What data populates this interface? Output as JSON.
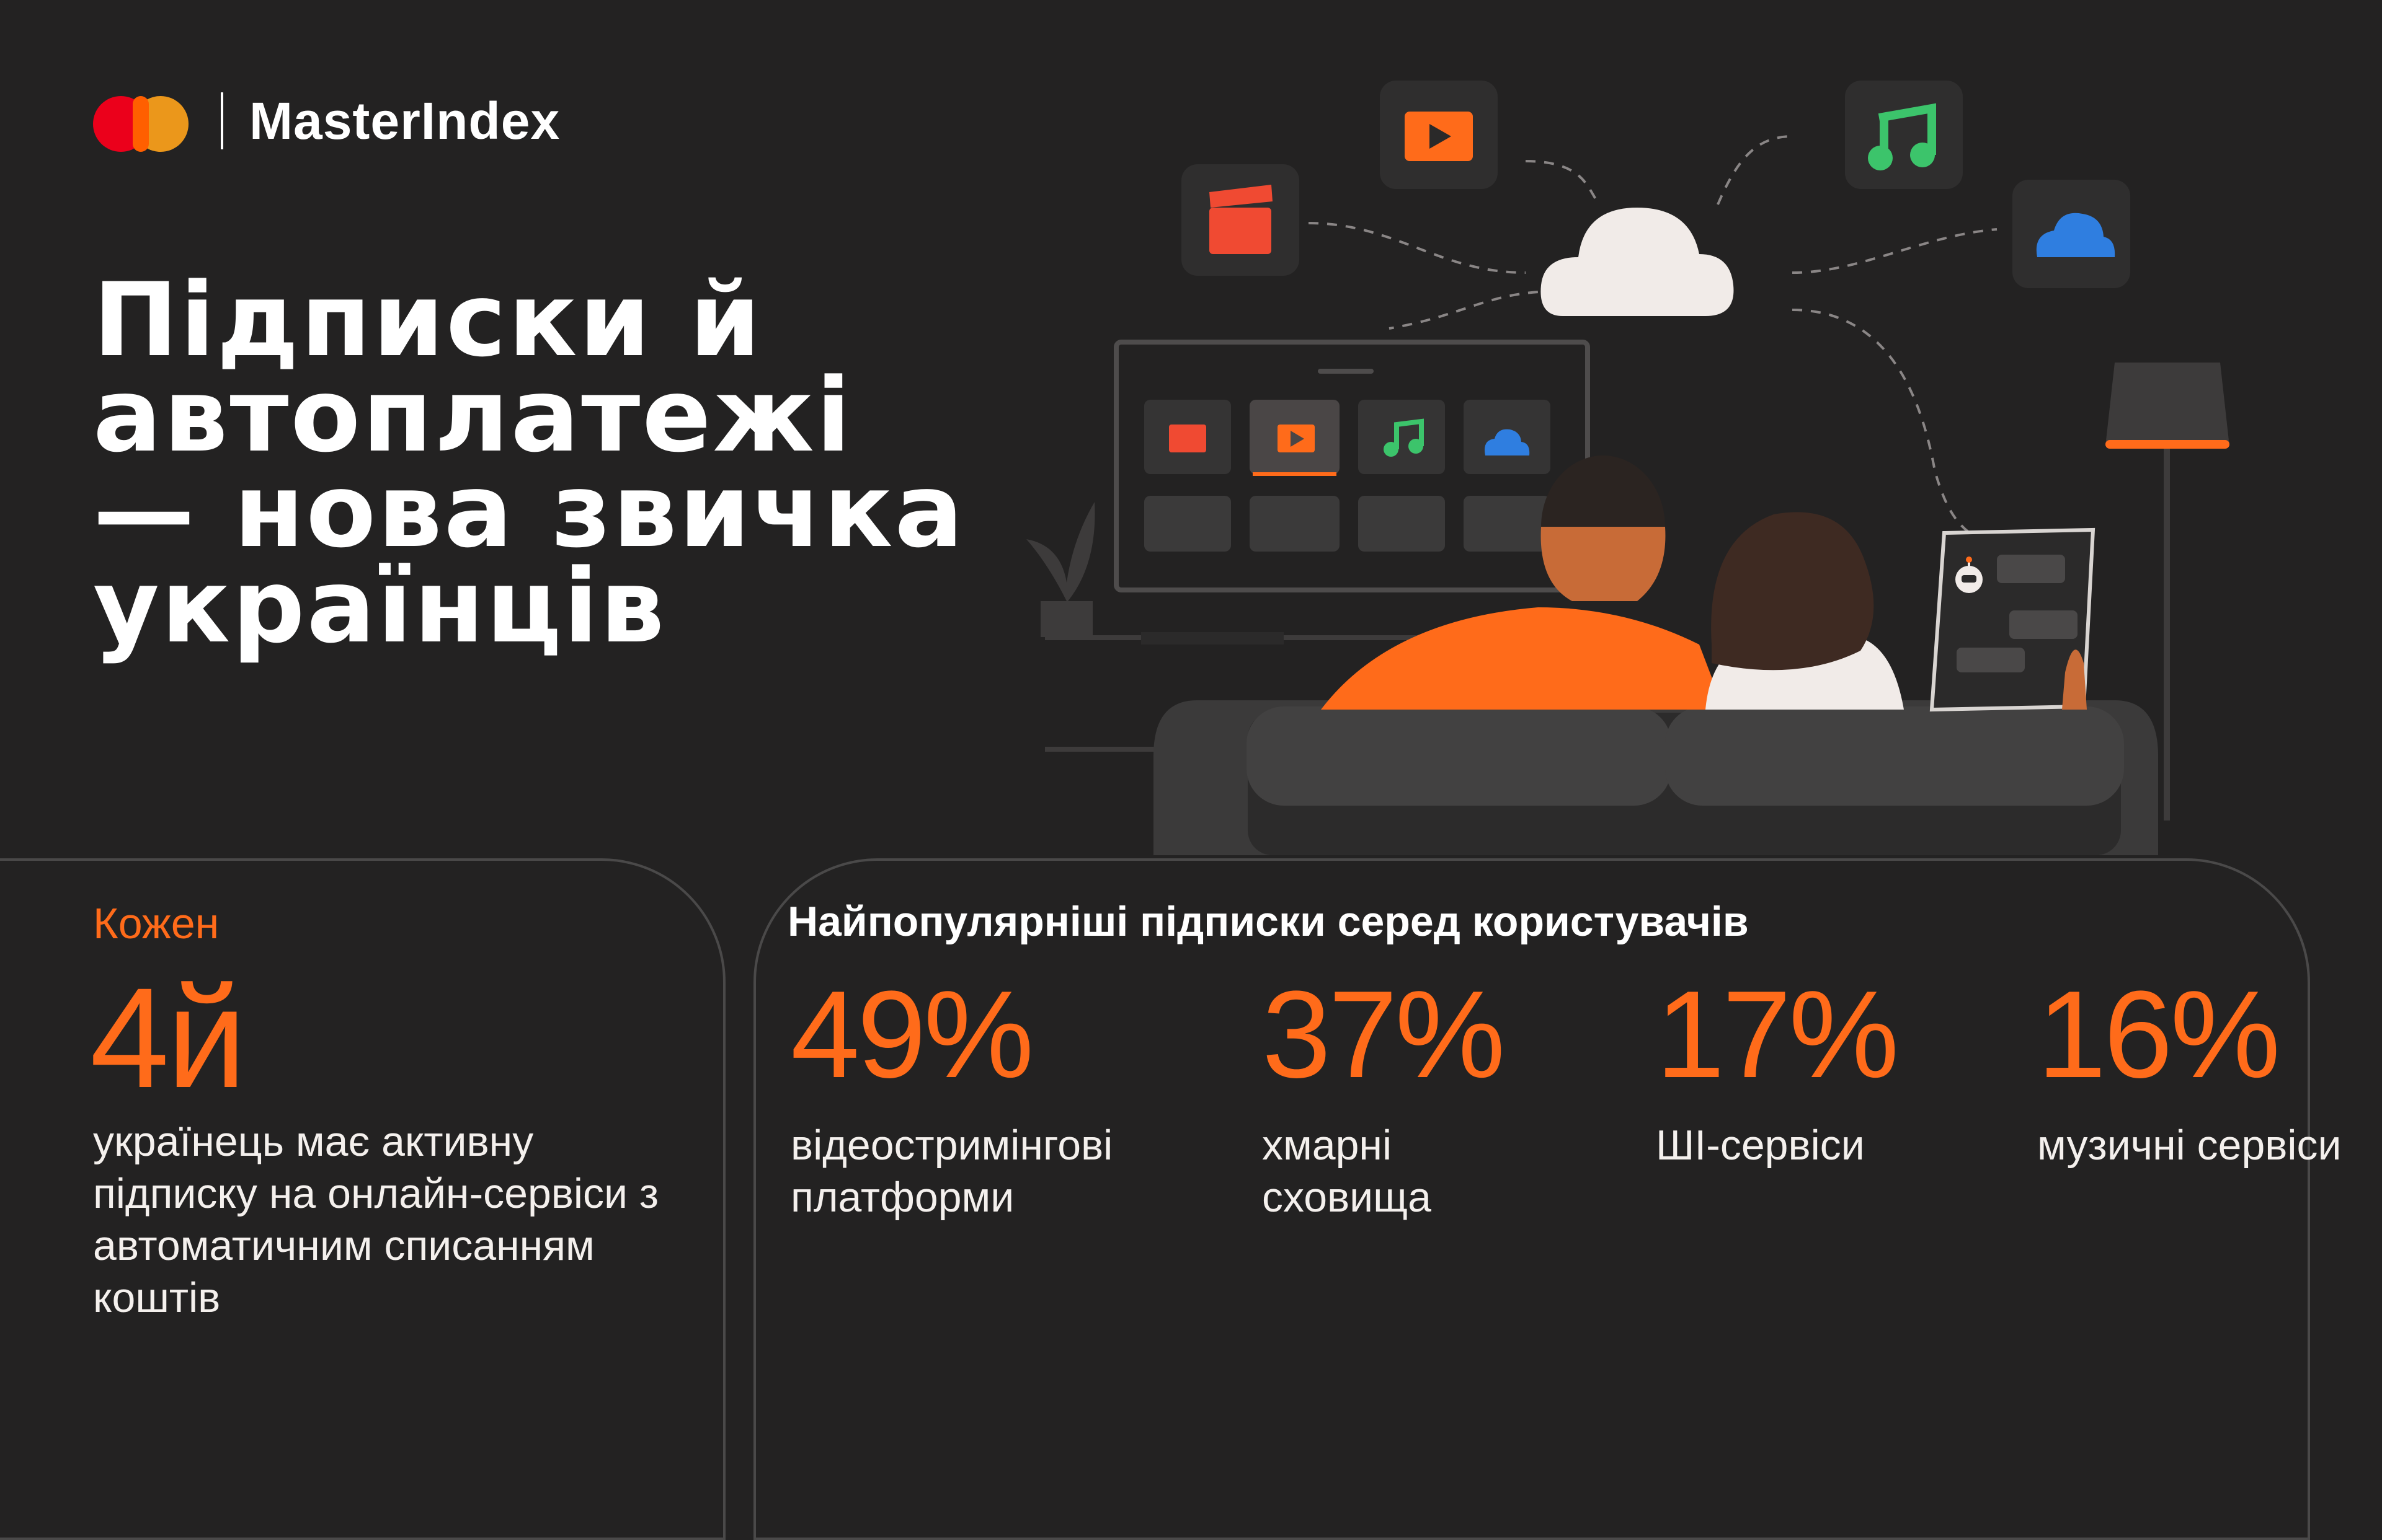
{
  "brand": {
    "name": "MasterIndex",
    "logo": "mastercard-logo-icon"
  },
  "headline": {
    "lines": [
      "Підписки й",
      "автоплатежі",
      "— нова звичка",
      "українців"
    ]
  },
  "left_panel": {
    "eyebrow": "Кожен",
    "value": "4й",
    "description": "українець має активну підписку на онлайн-сервіси з автоматичним списанням коштів"
  },
  "right_panel": {
    "title": "Найпопулярніші підписки серед користувачів",
    "stats": [
      {
        "value": "49%",
        "label": "відеостримінгові платформи"
      },
      {
        "value": "37%",
        "label": "хмарні сховища"
      },
      {
        "value": "17%",
        "label": "ШІ-сервіси"
      },
      {
        "value": "16%",
        "label": "музичні сервіси"
      }
    ]
  },
  "colors": {
    "background": "#232222",
    "accent": "#ff6b1a",
    "text": "#ffffff",
    "cloud": "#f1ebe8",
    "music_icon": "#3cc46b",
    "storage_icon": "#2f7ee0",
    "cinema_icon": "#f04a32"
  },
  "illustration": {
    "icons": [
      "clapperboard-icon",
      "play-icon",
      "music-note-icon",
      "cloud-storage-icon",
      "cloud-icon",
      "chatbot-icon",
      "plant-icon",
      "floor-lamp-icon"
    ]
  }
}
